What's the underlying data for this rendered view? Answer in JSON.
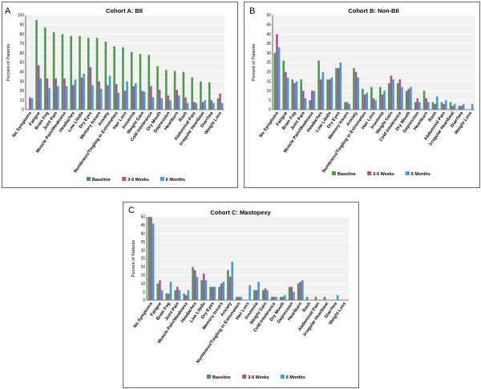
{
  "colors": {
    "baseline": "#4e9a4a",
    "weeks": "#b0509c",
    "months": "#3c9fd8",
    "panel_bg": "#f1f1f1",
    "grid": "#ffffff",
    "panel_border": "#666666"
  },
  "categories": [
    "No Symptoms",
    "Fatigue",
    "Brain Fog",
    "Joint Pain",
    "Muscle Pain/Weakness",
    "Headaches",
    "Low Libido",
    "Dry Eyes",
    "Memory Issues",
    "Anxiety",
    "Numbness/Tingling in Extremeties",
    "Hair Loss",
    "Insomnia",
    "Weight Gain",
    "Cold Intolerance",
    "Dry Mouth",
    "Depression",
    "Heartburn",
    "Rash",
    "Abdominal Pain",
    "Irregular Heartbeat",
    "Diarrhea",
    "Weight Loss"
  ],
  "chart_data": [
    {
      "type": "bar",
      "panel_letter": "A",
      "title": "Cohort A: BII",
      "ylabel": "Percent of Patients",
      "xlabel": "",
      "ylim": [
        0,
        100
      ],
      "yticks": [
        0,
        10,
        20,
        30,
        40,
        50,
        60,
        70,
        80,
        90,
        100
      ],
      "grid": true,
      "legend_position": "bottom",
      "series": [
        {
          "name": "Baseline",
          "values": [
            0,
            95,
            87,
            82,
            80,
            78,
            78,
            76,
            76,
            72,
            67,
            66,
            61,
            59,
            58,
            46,
            42,
            41,
            40,
            34,
            30,
            29,
            12
          ]
        },
        {
          "name": "3-6 Weeks",
          "values": [
            13,
            47,
            33,
            33,
            33,
            26,
            34,
            45,
            30,
            26,
            27,
            20,
            25,
            20,
            25,
            21,
            15,
            21,
            13,
            8,
            8,
            10,
            17
          ]
        },
        {
          "name": "6 Months",
          "values": [
            12,
            33,
            23,
            25,
            25,
            32,
            38,
            26,
            22,
            36,
            18,
            30,
            28,
            19,
            13,
            12,
            10,
            15,
            7,
            7,
            10,
            7,
            7
          ]
        }
      ]
    },
    {
      "type": "bar",
      "panel_letter": "B",
      "title": "Cohort B: Non-BII",
      "ylabel": "Percent of Patients",
      "xlabel": "",
      "ylim": [
        0,
        50
      ],
      "yticks": [
        0,
        5,
        10,
        15,
        20,
        25,
        30,
        35,
        40,
        45,
        50
      ],
      "grid": true,
      "legend_position": "bottom",
      "series": [
        {
          "name": "Baseline",
          "values": [
            30,
            26,
            16,
            16,
            5,
            26,
            16,
            22,
            4,
            22,
            11,
            12,
            12,
            14,
            14,
            10,
            4,
            10,
            4,
            4,
            4,
            2,
            0
          ]
        },
        {
          "name": "3-6 Weeks",
          "values": [
            40,
            20,
            14,
            10,
            10,
            16,
            16,
            22,
            4,
            20,
            8,
            6,
            8,
            18,
            16,
            11,
            6,
            6,
            3,
            3,
            2,
            2,
            0
          ]
        },
        {
          "name": "6 Months",
          "values": [
            33,
            17,
            15,
            6,
            10,
            20,
            17,
            25,
            3,
            17,
            9,
            5,
            10,
            16,
            12,
            12,
            4,
            4,
            7,
            5,
            3,
            3,
            3
          ]
        }
      ]
    },
    {
      "type": "bar",
      "panel_letter": "C",
      "title": "Cohort C: Mastopexy",
      "ylabel": "Percent of Patients",
      "xlabel": "",
      "ylim": [
        0,
        50
      ],
      "yticks": [
        0,
        5,
        10,
        15,
        20,
        25,
        30,
        35,
        40,
        45,
        50
      ],
      "grid": true,
      "legend_position": "bottom",
      "series": [
        {
          "name": "Baseline",
          "values": [
            50,
            10,
            4,
            6,
            4,
            20,
            12,
            8,
            8,
            18,
            2,
            0,
            6,
            6,
            2,
            2,
            8,
            10,
            2,
            2,
            2,
            0,
            0
          ]
        },
        {
          "name": "3-6 Weeks",
          "values": [
            50,
            12,
            4,
            8,
            3,
            18,
            16,
            8,
            10,
            14,
            2,
            0,
            6,
            7,
            2,
            2,
            8,
            11,
            0,
            0,
            0,
            0,
            0
          ]
        },
        {
          "name": "6 Months",
          "values": [
            46,
            6,
            11,
            6,
            6,
            14,
            12,
            8,
            11,
            23,
            2,
            9,
            11,
            6,
            2,
            3,
            5,
            12,
            0,
            0,
            0,
            3,
            0
          ]
        }
      ]
    }
  ]
}
